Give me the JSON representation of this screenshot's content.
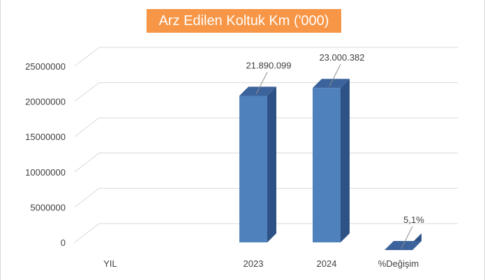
{
  "chart_data": {
    "type": "bar",
    "title": "Arz Edilen Koltuk Km ('000)",
    "categories": [
      "YIL",
      "2023",
      "2024",
      "%Değişim"
    ],
    "values": [
      null,
      21890099,
      23000382,
      5.1
    ],
    "data_labels": [
      "",
      "21.890.099",
      "23.000.382",
      "5,1%"
    ],
    "y_ticks": [
      0,
      5000000,
      10000000,
      15000000,
      20000000,
      25000000
    ],
    "y_tick_labels": [
      "0",
      "5000000",
      "10000000",
      "15000000",
      "20000000",
      "25000000"
    ],
    "ylim": [
      0,
      25000000
    ],
    "grid": true,
    "legend": "none",
    "xlabel": "",
    "ylabel": "",
    "colors": {
      "bar_front": "#4f81bd",
      "bar_side": "#2e5285",
      "bar_top": "#3c639b",
      "title_bg": "#f79646",
      "title_text": "#ffffff",
      "gridline": "#d9d9d9",
      "text": "#404040"
    }
  }
}
